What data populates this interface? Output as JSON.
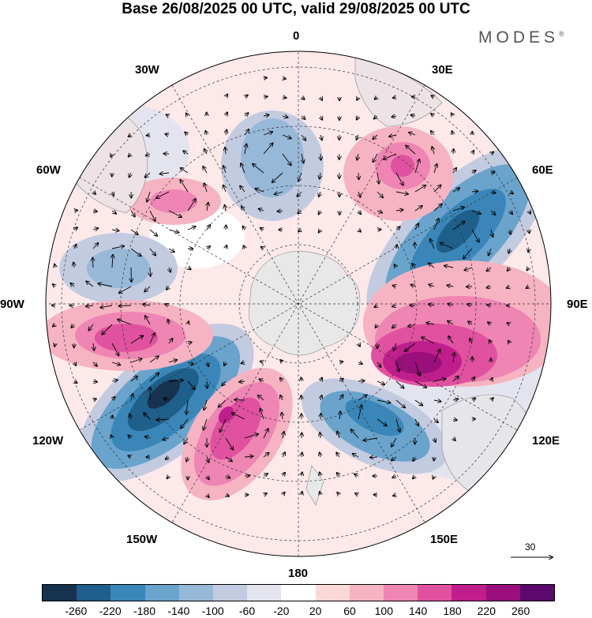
{
  "title": "Base 26/08/2025 00 UTC, valid 29/08/2025 00 UTC",
  "brand": "MODES",
  "brand_mark": "®",
  "longitude_labels": {
    "top": "0",
    "top_left": "30W",
    "top_right": "30E",
    "left_upper": "60W",
    "right_upper": "60E",
    "left": "90W",
    "right": "90E",
    "left_lower": "120W",
    "right_lower": "120E",
    "bottom_left": "150W",
    "bottom_right": "150E",
    "bottom": "180"
  },
  "reference_vector": {
    "label": "30"
  },
  "colorbar": {
    "colors": [
      "#16324f",
      "#1f5f8b",
      "#3a86b8",
      "#6aa3cc",
      "#98b8d8",
      "#c3cbe1",
      "#e4e4ef",
      "#ffffff",
      "#fbd9d9",
      "#f6b3c2",
      "#ee85b3",
      "#e0529f",
      "#c01e8c",
      "#9a0f7c",
      "#5b0a6b"
    ],
    "tick_labels": [
      "-260",
      "-220",
      "-180",
      "-140",
      "-100",
      "-60",
      "-20",
      "20",
      "60",
      "100",
      "140",
      "180",
      "220",
      "260"
    ]
  }
}
